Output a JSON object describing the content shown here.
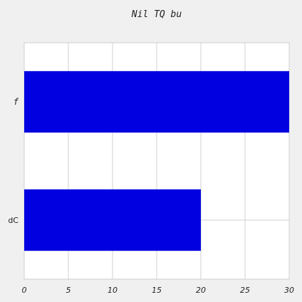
{
  "chart_data": {
    "type": "bar",
    "orientation": "horizontal",
    "title": "Nil TQ bu",
    "categories": [
      "f",
      "dC"
    ],
    "values": [
      30,
      20
    ],
    "xlabel": "",
    "ylabel": "",
    "xlim": [
      0,
      30
    ],
    "x_ticks": [
      "0",
      "5",
      "10",
      "15",
      "20",
      "25",
      "30"
    ],
    "grid": true,
    "legend": "none",
    "colors": {
      "bar": "#0000e0",
      "background": "#f0f0f0",
      "plot_background": "#ffffff",
      "grid": "#d0d0d0"
    }
  }
}
